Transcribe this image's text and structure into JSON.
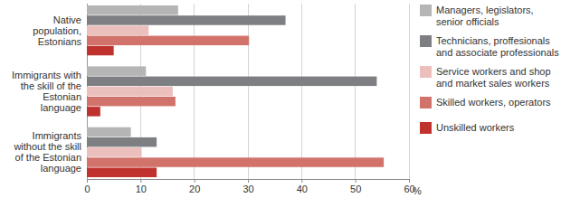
{
  "chart_data": {
    "type": "bar",
    "orientation": "horizontal",
    "categories": [
      "Native population, Estonians",
      "Immigrants with the skill of the Estonian language",
      "Immigrants without the skill of the Estonian language"
    ],
    "series": [
      {
        "name": "Managers, legislators, senior officials",
        "color": "#b5b5b6",
        "values": [
          17,
          11,
          8.2
        ]
      },
      {
        "name": "Technicians, proffesionals and associate professionals",
        "color": "#7e7f82",
        "values": [
          37,
          54,
          13
        ]
      },
      {
        "name": "Service workers and shop and market sales workers",
        "color": "#ebbfbb",
        "values": [
          11.5,
          16,
          10.2
        ]
      },
      {
        "name": "Skilled workers, operators",
        "color": "#d2736b",
        "values": [
          30.2,
          16.5,
          55.3
        ]
      },
      {
        "name": "Unskilled workers",
        "color": "#c0322e",
        "values": [
          5,
          2.5,
          13
        ]
      }
    ],
    "xlim": [
      0,
      60
    ],
    "xticks": [
      0,
      10,
      20,
      30,
      40,
      50,
      60
    ],
    "xlabel": "%",
    "grid": true,
    "legend": "right"
  }
}
